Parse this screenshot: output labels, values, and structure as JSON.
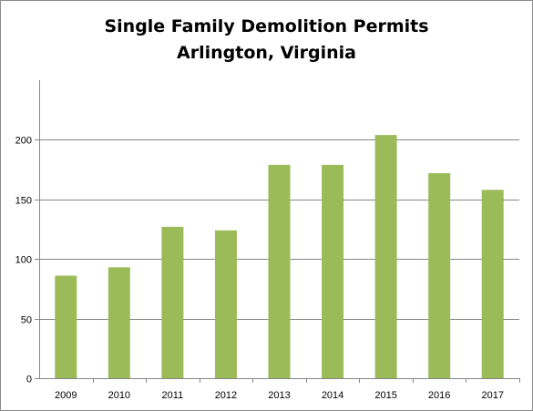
{
  "chart_data": {
    "type": "bar",
    "title": "Single Family Demolition Permits",
    "subtitle": "Arlington, Virginia",
    "categories": [
      "2009",
      "2010",
      "2011",
      "2012",
      "2013",
      "2014",
      "2015",
      "2016",
      "2017"
    ],
    "values": [
      86,
      93,
      127,
      124,
      179,
      179,
      204,
      172,
      158
    ],
    "xlabel": "",
    "ylabel": "",
    "ylim": [
      0,
      250
    ],
    "yticks": [
      0,
      50,
      100,
      150,
      200
    ],
    "grid": true,
    "legend": "none",
    "bar_color": "#9bbb59",
    "grid_color": "#868686"
  }
}
